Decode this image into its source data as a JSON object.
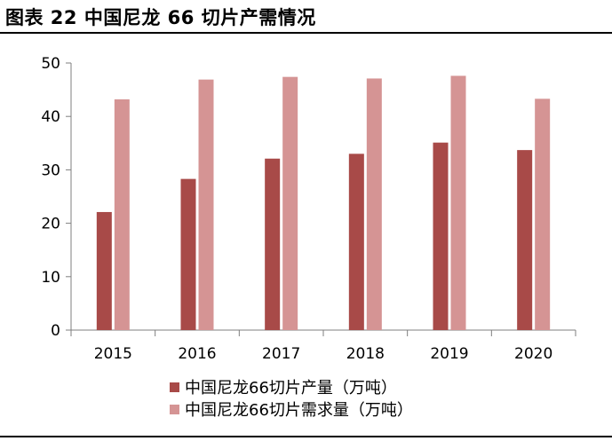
{
  "figure": {
    "title": "图表 22  中国尼龙 66 切片产需情况"
  },
  "chart_data": {
    "type": "bar",
    "title": "图表 22  中国尼龙 66 切片产需情况",
    "xlabel": "",
    "ylabel": "",
    "categories": [
      "2015",
      "2016",
      "2017",
      "2018",
      "2019",
      "2020"
    ],
    "series": [
      {
        "name": "中国尼龙66切片产量（万吨）",
        "color": "#A84A48",
        "values": [
          22.1,
          28.3,
          32.1,
          33.0,
          35.1,
          33.7
        ]
      },
      {
        "name": "中国尼龙66切片需求量（万吨）",
        "color": "#D59494",
        "values": [
          43.2,
          46.9,
          47.4,
          47.1,
          47.6,
          43.3
        ]
      }
    ],
    "ylim": [
      0,
      50
    ],
    "yticks": [
      0,
      10,
      20,
      30,
      40,
      50
    ],
    "grid": false,
    "legend_position": "bottom-center"
  }
}
